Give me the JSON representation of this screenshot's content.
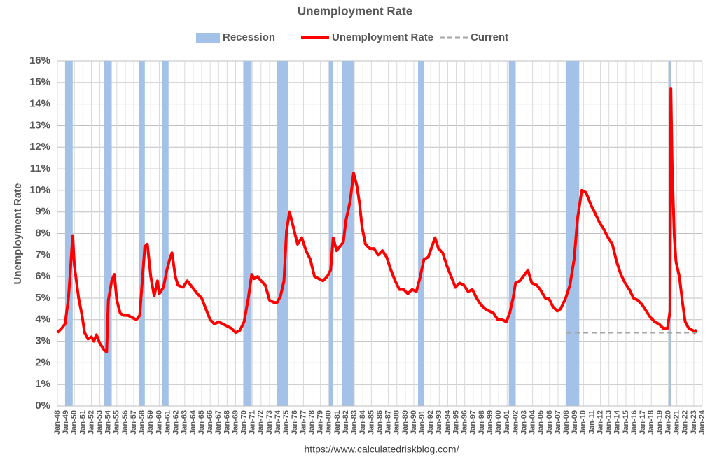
{
  "chart_data": {
    "type": "line",
    "title": "Unemployment Rate",
    "y_label": "Unemployment Rate",
    "source": "https://www.calculatedriskblog.com/",
    "xlim": [
      1948,
      2024
    ],
    "ylim": [
      0,
      16
    ],
    "yticks": [
      {
        "value": 0,
        "label": "0%"
      },
      {
        "value": 1,
        "label": "1%"
      },
      {
        "value": 2,
        "label": "2%"
      },
      {
        "value": 3,
        "label": "3%"
      },
      {
        "value": 4,
        "label": "4%"
      },
      {
        "value": 5,
        "label": "5%"
      },
      {
        "value": 6,
        "label": "6%"
      },
      {
        "value": 7,
        "label": "7%"
      },
      {
        "value": 8,
        "label": "8%"
      },
      {
        "value": 9,
        "label": "9%"
      },
      {
        "value": 10,
        "label": "10%"
      },
      {
        "value": 11,
        "label": "11%"
      },
      {
        "value": 12,
        "label": "12%"
      },
      {
        "value": 13,
        "label": "13%"
      },
      {
        "value": 14,
        "label": "14%"
      },
      {
        "value": 15,
        "label": "15%"
      },
      {
        "value": 16,
        "label": "16%"
      }
    ],
    "xticks": [
      {
        "value": 1948,
        "label": "Jan-48"
      },
      {
        "value": 1949,
        "label": "Jan-49"
      },
      {
        "value": 1950,
        "label": "Jan-50"
      },
      {
        "value": 1951,
        "label": "Jan-51"
      },
      {
        "value": 1952,
        "label": "Jan-52"
      },
      {
        "value": 1953,
        "label": "Jan-53"
      },
      {
        "value": 1954,
        "label": "Jan-54"
      },
      {
        "value": 1955,
        "label": "Jan-55"
      },
      {
        "value": 1956,
        "label": "Jan-56"
      },
      {
        "value": 1957,
        "label": "Jan-57"
      },
      {
        "value": 1958,
        "label": "Jan-58"
      },
      {
        "value": 1959,
        "label": "Jan-59"
      },
      {
        "value": 1960,
        "label": "Jan-60"
      },
      {
        "value": 1961,
        "label": "Jan-61"
      },
      {
        "value": 1962,
        "label": "Jan-62"
      },
      {
        "value": 1963,
        "label": "Jan-63"
      },
      {
        "value": 1964,
        "label": "Jan-64"
      },
      {
        "value": 1965,
        "label": "Jan-65"
      },
      {
        "value": 1966,
        "label": "Jan-66"
      },
      {
        "value": 1967,
        "label": "Jan-67"
      },
      {
        "value": 1968,
        "label": "Jan-68"
      },
      {
        "value": 1969,
        "label": "Jan-69"
      },
      {
        "value": 1970,
        "label": "Jan-70"
      },
      {
        "value": 1971,
        "label": "Jan-71"
      },
      {
        "value": 1972,
        "label": "Jan-72"
      },
      {
        "value": 1973,
        "label": "Jan-73"
      },
      {
        "value": 1974,
        "label": "Jan-74"
      },
      {
        "value": 1975,
        "label": "Jan-75"
      },
      {
        "value": 1976,
        "label": "Jan-76"
      },
      {
        "value": 1977,
        "label": "Jan-77"
      },
      {
        "value": 1978,
        "label": "Jan-78"
      },
      {
        "value": 1979,
        "label": "Jan-79"
      },
      {
        "value": 1980,
        "label": "Jan-80"
      },
      {
        "value": 1981,
        "label": "Jan-81"
      },
      {
        "value": 1982,
        "label": "Jan-82"
      },
      {
        "value": 1983,
        "label": "Jan-83"
      },
      {
        "value": 1984,
        "label": "Jan-84"
      },
      {
        "value": 1985,
        "label": "Jan-85"
      },
      {
        "value": 1986,
        "label": "Jan-86"
      },
      {
        "value": 1987,
        "label": "Jan-87"
      },
      {
        "value": 1988,
        "label": "Jan-88"
      },
      {
        "value": 1989,
        "label": "Jan-89"
      },
      {
        "value": 1990,
        "label": "Jan-90"
      },
      {
        "value": 1991,
        "label": "Jan-91"
      },
      {
        "value": 1992,
        "label": "Jan-92"
      },
      {
        "value": 1993,
        "label": "Jan-93"
      },
      {
        "value": 1994,
        "label": "Jan-94"
      },
      {
        "value": 1995,
        "label": "Jan-95"
      },
      {
        "value": 1996,
        "label": "Jan-96"
      },
      {
        "value": 1997,
        "label": "Jan-97"
      },
      {
        "value": 1998,
        "label": "Jan-98"
      },
      {
        "value": 1999,
        "label": "Jan-99"
      },
      {
        "value": 2000,
        "label": "Jan-00"
      },
      {
        "value": 2001,
        "label": "Jan-01"
      },
      {
        "value": 2002,
        "label": "Jan-02"
      },
      {
        "value": 2003,
        "label": "Jan-03"
      },
      {
        "value": 2004,
        "label": "Jan-04"
      },
      {
        "value": 2005,
        "label": "Jan-05"
      },
      {
        "value": 2006,
        "label": "Jan-06"
      },
      {
        "value": 2007,
        "label": "Jan-07"
      },
      {
        "value": 2008,
        "label": "Jan-08"
      },
      {
        "value": 2009,
        "label": "Jan-09"
      },
      {
        "value": 2010,
        "label": "Jan-10"
      },
      {
        "value": 2011,
        "label": "Jan-11"
      },
      {
        "value": 2012,
        "label": "Jan-12"
      },
      {
        "value": 2013,
        "label": "Jan-13"
      },
      {
        "value": 2014,
        "label": "Jan-14"
      },
      {
        "value": 2015,
        "label": "Jan-15"
      },
      {
        "value": 2016,
        "label": "Jan-16"
      },
      {
        "value": 2017,
        "label": "Jan-17"
      },
      {
        "value": 2018,
        "label": "Jan-18"
      },
      {
        "value": 2019,
        "label": "Jan-19"
      },
      {
        "value": 2020,
        "label": "Jan-20"
      },
      {
        "value": 2021,
        "label": "Jan-21"
      },
      {
        "value": 2022,
        "label": "Jan-22"
      },
      {
        "value": 2023,
        "label": "Jan-23"
      },
      {
        "value": 2024,
        "label": "Jan-24"
      }
    ],
    "grid": true,
    "series": [
      {
        "name": "Recession",
        "color": "#a4c2e8",
        "spans": [
          [
            1948.9,
            1949.8
          ],
          [
            1953.5,
            1954.4
          ],
          [
            1957.6,
            1958.3
          ],
          [
            1960.3,
            1961.1
          ],
          [
            1969.9,
            1970.9
          ],
          [
            1973.9,
            1975.2
          ],
          [
            1980.0,
            1980.5
          ],
          [
            1981.5,
            1982.9
          ],
          [
            1990.5,
            1991.2
          ],
          [
            2001.2,
            2001.9
          ],
          [
            2007.9,
            2009.5
          ],
          [
            2020.1,
            2020.3
          ]
        ]
      },
      {
        "name": "Unemployment Rate",
        "color": "#ff0000",
        "x": [
          1948.0,
          1948.5,
          1948.9,
          1949.3,
          1949.6,
          1949.8,
          1950.0,
          1950.5,
          1950.9,
          1951.2,
          1951.6,
          1952.0,
          1952.3,
          1952.6,
          1953.0,
          1953.5,
          1953.8,
          1954.0,
          1954.4,
          1954.7,
          1955.0,
          1955.4,
          1955.8,
          1956.3,
          1956.8,
          1957.3,
          1957.7,
          1958.0,
          1958.3,
          1958.6,
          1959.0,
          1959.4,
          1959.8,
          1960.0,
          1960.5,
          1960.9,
          1961.3,
          1961.5,
          1961.9,
          1962.2,
          1962.8,
          1963.3,
          1963.9,
          1964.5,
          1965.0,
          1965.5,
          1966.0,
          1966.5,
          1967.0,
          1967.5,
          1968.0,
          1968.5,
          1969.0,
          1969.5,
          1970.0,
          1970.5,
          1970.9,
          1971.2,
          1971.6,
          1972.0,
          1972.5,
          1973.0,
          1973.5,
          1973.9,
          1974.3,
          1974.7,
          1975.0,
          1975.35,
          1975.8,
          1976.3,
          1976.8,
          1977.3,
          1977.8,
          1978.3,
          1978.8,
          1979.3,
          1979.8,
          1980.2,
          1980.5,
          1980.9,
          1981.3,
          1981.7,
          1982.0,
          1982.5,
          1982.9,
          1983.3,
          1983.6,
          1983.9,
          1984.3,
          1984.8,
          1985.3,
          1985.8,
          1986.3,
          1986.8,
          1987.3,
          1987.8,
          1988.3,
          1988.8,
          1989.3,
          1989.8,
          1990.3,
          1990.7,
          1991.2,
          1991.7,
          1992.5,
          1992.9,
          1993.4,
          1993.9,
          1994.4,
          1994.9,
          1995.4,
          1995.9,
          1996.4,
          1996.9,
          1997.4,
          1997.9,
          1998.4,
          1998.9,
          1999.4,
          1999.9,
          2000.4,
          2000.9,
          2001.3,
          2001.7,
          2001.99,
          2002.5,
          2002.9,
          2003.45,
          2003.9,
          2004.5,
          2004.9,
          2005.5,
          2005.9,
          2006.4,
          2006.9,
          2007.3,
          2007.9,
          2008.4,
          2008.9,
          2009.3,
          2009.8,
          2010.3,
          2010.9,
          2011.3,
          2011.9,
          2012.4,
          2012.9,
          2013.4,
          2013.9,
          2014.4,
          2014.9,
          2015.4,
          2015.9,
          2016.4,
          2016.9,
          2017.4,
          2017.9,
          2018.4,
          2018.9,
          2019.4,
          2019.9,
          2020.2,
          2020.3,
          2020.45,
          2020.7,
          2020.9,
          2021.3,
          2021.7,
          2021.99,
          2022.4,
          2022.9,
          2023.1,
          2023.2,
          2023.3
        ],
        "values": [
          3.4,
          3.6,
          3.8,
          5.0,
          6.7,
          7.9,
          6.5,
          5.0,
          4.2,
          3.4,
          3.1,
          3.2,
          3.0,
          3.3,
          2.9,
          2.6,
          2.5,
          4.9,
          5.8,
          6.1,
          4.9,
          4.3,
          4.2,
          4.2,
          4.1,
          4.0,
          4.2,
          5.8,
          7.4,
          7.5,
          6.0,
          5.1,
          5.8,
          5.2,
          5.5,
          6.3,
          6.9,
          7.1,
          6.0,
          5.6,
          5.5,
          5.8,
          5.5,
          5.2,
          5.0,
          4.5,
          4.0,
          3.8,
          3.9,
          3.8,
          3.7,
          3.6,
          3.4,
          3.5,
          3.9,
          5.0,
          6.1,
          5.9,
          6.0,
          5.8,
          5.6,
          4.9,
          4.8,
          4.8,
          5.1,
          5.8,
          8.1,
          9.0,
          8.3,
          7.5,
          7.8,
          7.2,
          6.8,
          6.0,
          5.9,
          5.8,
          6.0,
          6.3,
          7.8,
          7.2,
          7.4,
          7.6,
          8.6,
          9.5,
          10.8,
          10.2,
          9.4,
          8.3,
          7.5,
          7.3,
          7.3,
          7.0,
          7.2,
          6.9,
          6.3,
          5.8,
          5.4,
          5.4,
          5.2,
          5.4,
          5.3,
          5.9,
          6.8,
          6.9,
          7.8,
          7.3,
          7.1,
          6.5,
          6.0,
          5.5,
          5.7,
          5.6,
          5.3,
          5.4,
          5.0,
          4.7,
          4.5,
          4.4,
          4.3,
          4.0,
          4.0,
          3.9,
          4.3,
          5.0,
          5.7,
          5.8,
          6.0,
          6.3,
          5.7,
          5.6,
          5.4,
          5.0,
          5.0,
          4.6,
          4.4,
          4.5,
          5.0,
          5.6,
          6.8,
          8.7,
          10.0,
          9.9,
          9.3,
          9.0,
          8.5,
          8.2,
          7.8,
          7.5,
          6.7,
          6.1,
          5.7,
          5.4,
          5.0,
          4.9,
          4.7,
          4.4,
          4.1,
          3.9,
          3.8,
          3.6,
          3.6,
          4.4,
          14.7,
          11.1,
          7.9,
          6.7,
          6.0,
          4.7,
          3.9,
          3.6,
          3.5,
          3.4,
          3.5,
          3.4
        ]
      },
      {
        "name": "Current",
        "color": "#a6a6a6",
        "dash": true,
        "x": [
          2008,
          2023.5
        ],
        "values": [
          3.4,
          3.4
        ]
      }
    ]
  }
}
